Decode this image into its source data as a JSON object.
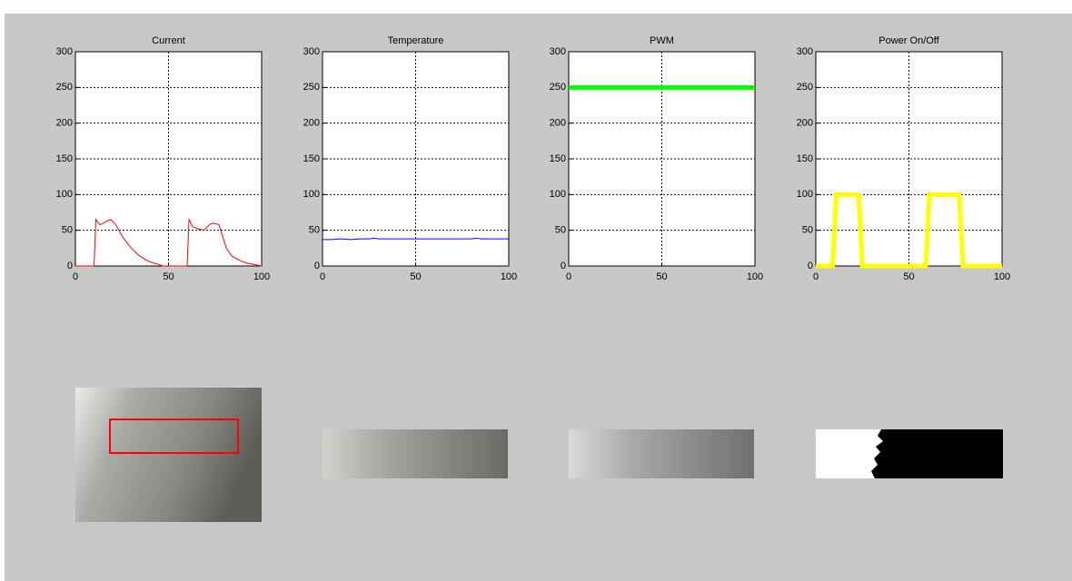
{
  "chart_data": [
    {
      "type": "line",
      "title": "Current",
      "x": [
        0,
        10,
        11,
        13,
        15,
        17,
        19,
        21,
        23,
        25,
        27,
        30,
        34,
        38,
        42,
        45,
        47,
        60,
        61,
        63,
        66,
        69,
        72,
        74,
        77,
        79,
        81,
        84,
        88,
        92,
        96,
        100
      ],
      "series": [
        {
          "color": "#ff0000",
          "line_width": 1,
          "values": [
            0,
            0,
            65,
            58,
            60,
            63,
            65,
            60,
            52,
            42,
            35,
            25,
            15,
            8,
            4,
            2,
            0,
            0,
            65,
            55,
            52,
            50,
            58,
            60,
            58,
            42,
            25,
            14,
            8,
            4,
            2,
            0
          ]
        }
      ],
      "xlim": [
        0,
        100
      ],
      "ylim": [
        0,
        300
      ],
      "xticks": [
        0,
        50,
        100
      ],
      "yticks": [
        0,
        50,
        100,
        150,
        200,
        250,
        300
      ],
      "grid": true
    },
    {
      "type": "line",
      "title": "Temperature",
      "x": [
        0,
        5,
        10,
        15,
        20,
        25,
        28,
        30,
        35,
        40,
        45,
        50,
        55,
        60,
        65,
        70,
        75,
        80,
        83,
        85,
        90,
        95,
        100
      ],
      "series": [
        {
          "color": "#0000ff",
          "line_width": 1,
          "values": [
            37,
            37,
            38,
            37,
            38,
            38,
            39,
            38,
            38,
            38,
            38,
            38,
            38,
            38,
            38,
            38,
            38,
            38,
            39,
            38,
            38,
            38,
            38
          ]
        }
      ],
      "xlim": [
        0,
        100
      ],
      "ylim": [
        0,
        300
      ],
      "xticks": [
        0,
        50,
        100
      ],
      "yticks": [
        0,
        50,
        100,
        150,
        200,
        250,
        300
      ],
      "grid": true
    },
    {
      "type": "line",
      "title": "PWM",
      "x": [
        0,
        5,
        10,
        15,
        20,
        25,
        30,
        35,
        40,
        45,
        50,
        55,
        60,
        65,
        70,
        75,
        80,
        85,
        90,
        95,
        100
      ],
      "series": [
        {
          "color": "#00ff00",
          "line_width": 5,
          "values": [
            250,
            250,
            250,
            250,
            250,
            250,
            250,
            250,
            250,
            250,
            250,
            250,
            250,
            250,
            250,
            250,
            250,
            250,
            250,
            250,
            250
          ]
        }
      ],
      "xlim": [
        0,
        100
      ],
      "ylim": [
        0,
        300
      ],
      "xticks": [
        0,
        50,
        100
      ],
      "yticks": [
        0,
        50,
        100,
        150,
        200,
        250,
        300
      ],
      "grid": true
    },
    {
      "type": "line",
      "title": "Power On/Off",
      "x": [
        0,
        9,
        11,
        23,
        25,
        59,
        61,
        77,
        79,
        100
      ],
      "series": [
        {
          "color": "#ffff00",
          "line_width": 5,
          "values": [
            0,
            0,
            100,
            100,
            0,
            0,
            100,
            100,
            0,
            0
          ]
        }
      ],
      "xlim": [
        0,
        100
      ],
      "ylim": [
        0,
        300
      ],
      "xticks": [
        0,
        50,
        100
      ],
      "yticks": [
        0,
        50,
        100,
        150,
        200,
        250,
        300
      ],
      "grid": true
    }
  ]
}
